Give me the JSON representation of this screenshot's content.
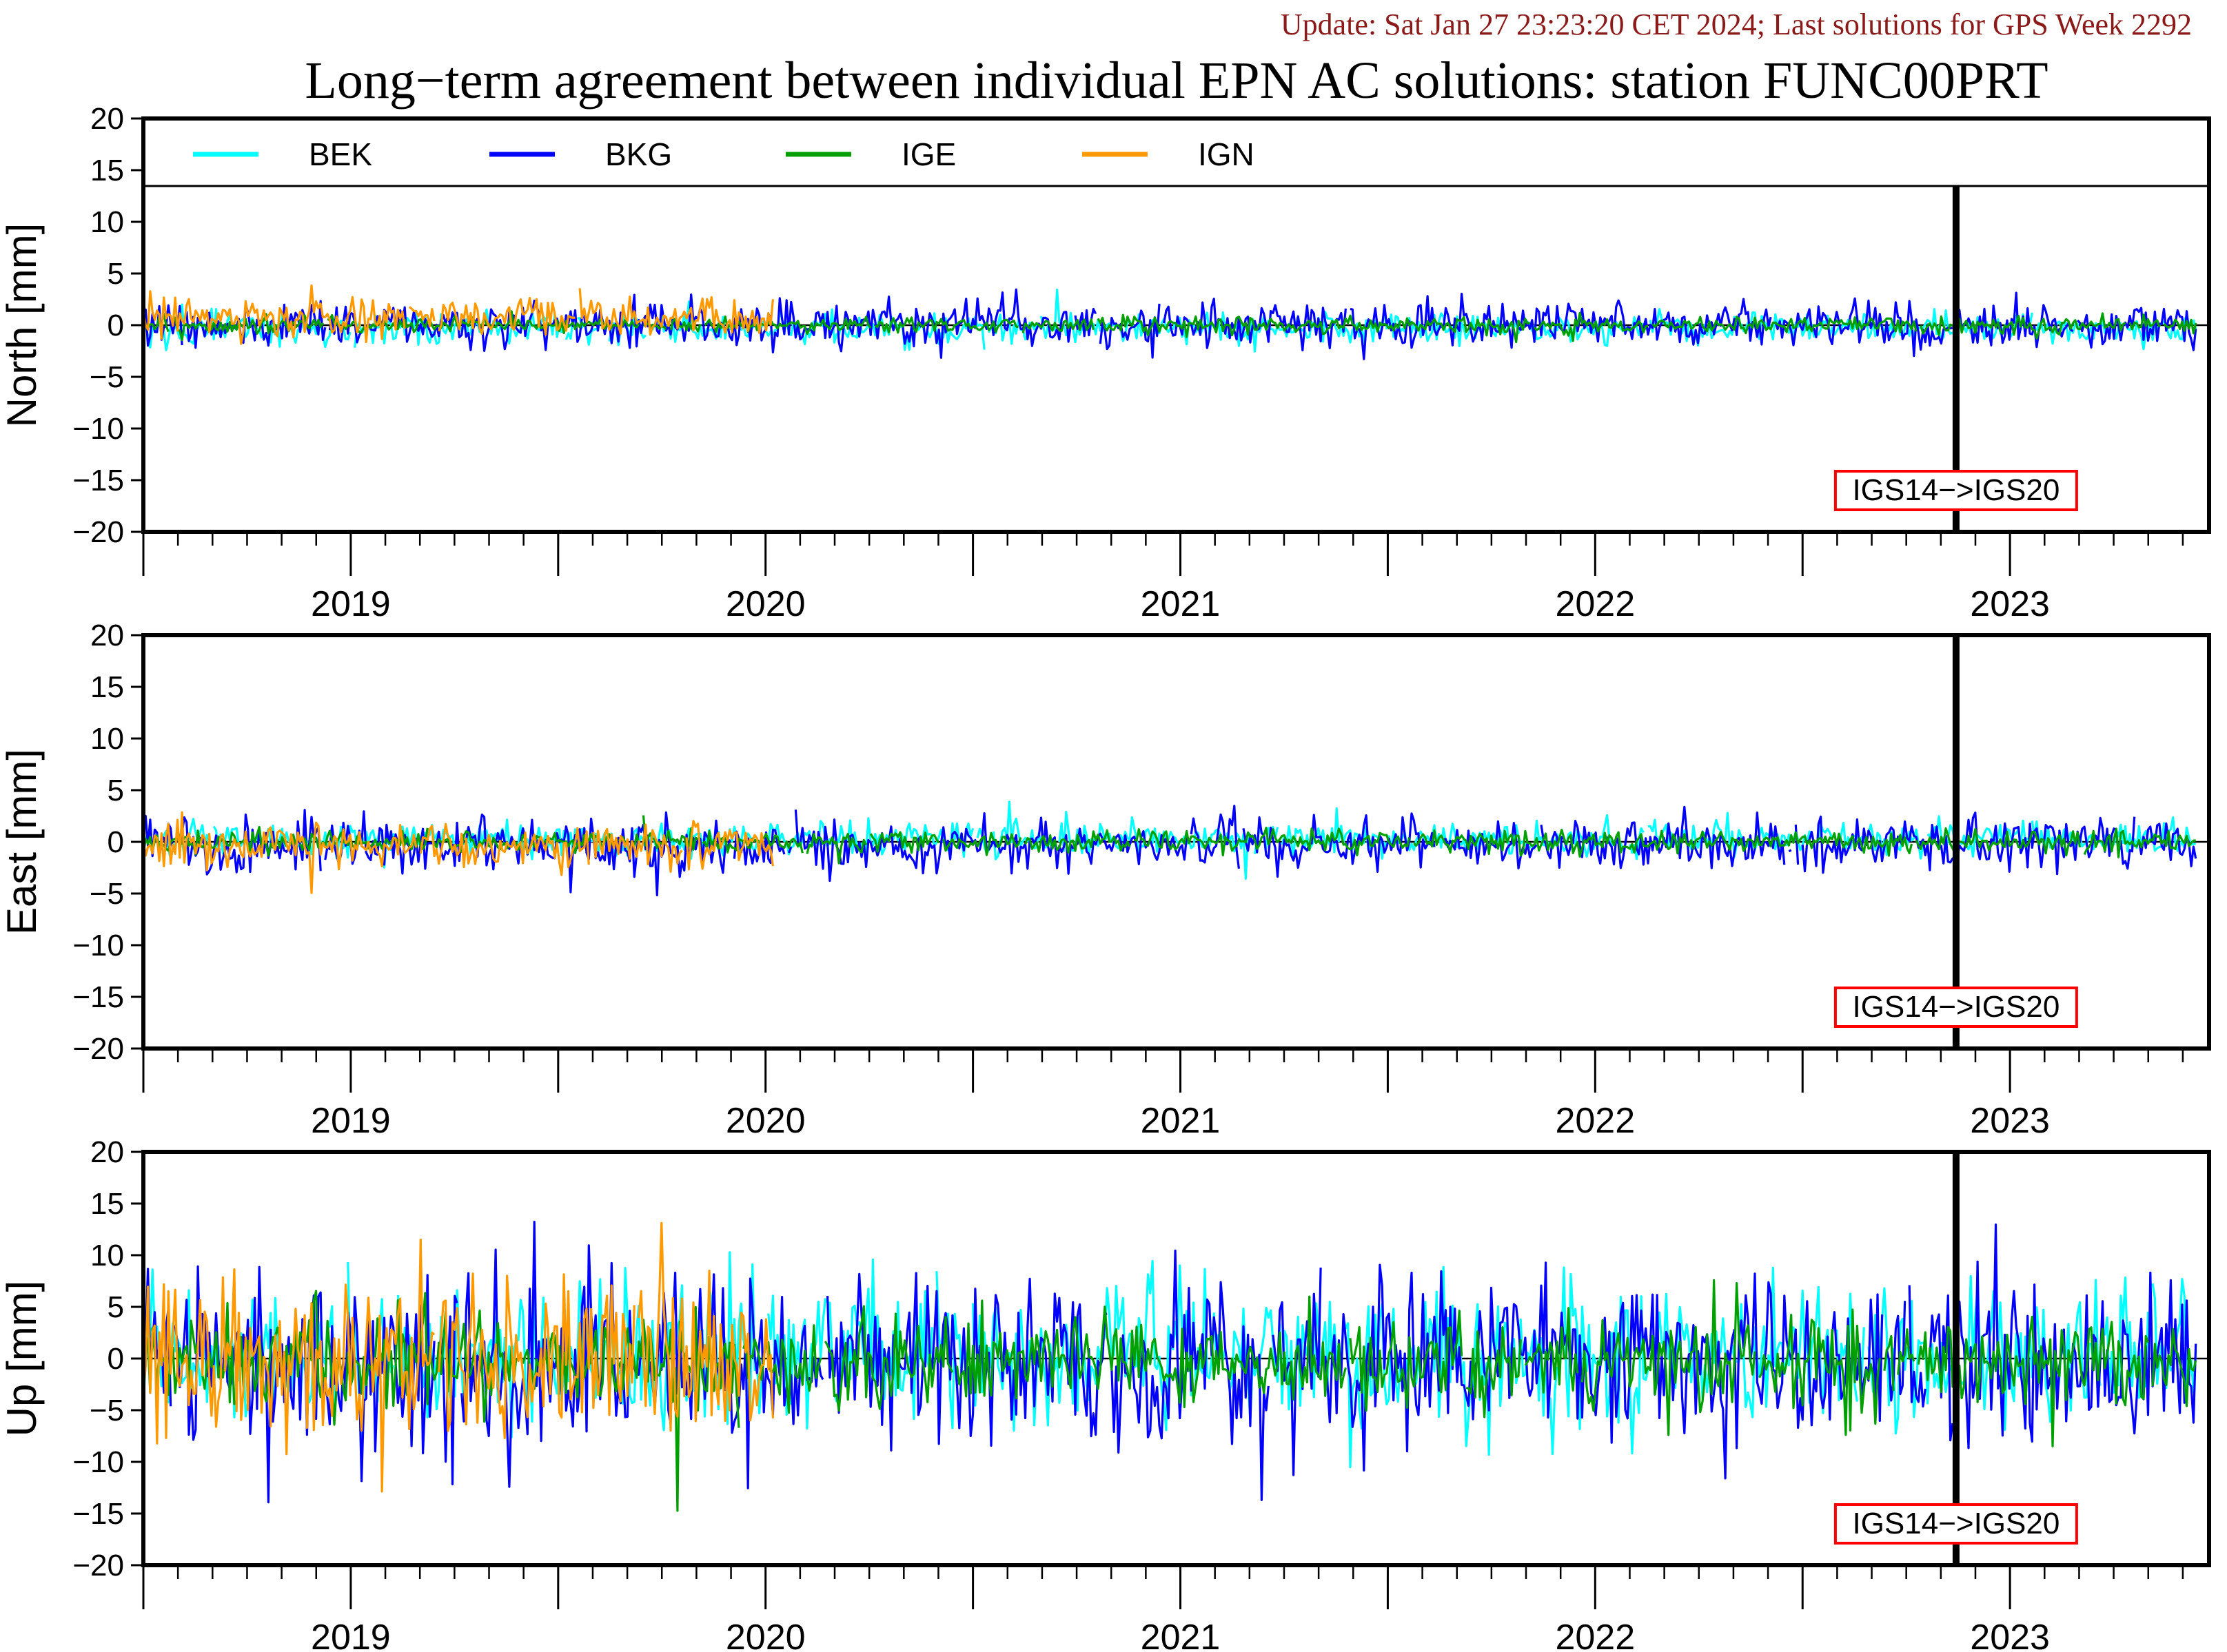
{
  "header": {
    "update": "Update: Sat Jan 27 23:23:20 CET 2024; Last solutions for GPS Week 2292",
    "title": "Long−term agreement between individual EPN AC solutions: station FUNC00PRT"
  },
  "colors": {
    "BEK": "#00ffff",
    "BKG": "#0000ff",
    "IGE": "#00a000",
    "IGN": "#ff9900",
    "annotation_border": "#ff0000",
    "update_text": "#8b1a1a"
  },
  "legend": [
    {
      "name": "BEK",
      "color": "#00ffff"
    },
    {
      "name": "BKG",
      "color": "#0000ff"
    },
    {
      "name": "IGE",
      "color": "#00a000"
    },
    {
      "name": "IGN",
      "color": "#ff9900"
    }
  ],
  "annotation": {
    "label": "IGS14−>IGS20",
    "date": 2022.87
  },
  "chart_data": [
    {
      "type": "line",
      "ylabel": "North [mm]",
      "ylim": [
        -20,
        20
      ],
      "yticks": [
        20,
        15,
        10,
        5,
        0,
        -5,
        -10,
        -15,
        -20
      ],
      "xlim": [
        2018.5,
        2023.48
      ],
      "year_labels": [
        "2019",
        "2020",
        "2021",
        "2022",
        "2023"
      ],
      "has_legend": true,
      "series": [
        {
          "name": "BEK",
          "start": 2018.5,
          "end": 2023.45,
          "amp": 0.7,
          "bias": -0.3
        },
        {
          "name": "BKG",
          "start": 2018.5,
          "end": 2023.45,
          "amp": 1.1,
          "bias": 0.0
        },
        {
          "name": "IGE",
          "start": 2018.5,
          "end": 2023.45,
          "amp": 0.4,
          "bias": 0.0
        },
        {
          "name": "IGN",
          "start": 2018.5,
          "end": 2020.02,
          "amp": 0.9,
          "bias": 0.8
        }
      ]
    },
    {
      "type": "line",
      "ylabel": "East [mm]",
      "ylim": [
        -20,
        20
      ],
      "yticks": [
        20,
        15,
        10,
        5,
        0,
        -5,
        -10,
        -15,
        -20
      ],
      "xlim": [
        2018.5,
        2023.48
      ],
      "year_labels": [
        "2019",
        "2020",
        "2021",
        "2022",
        "2023"
      ],
      "has_legend": false,
      "series": [
        {
          "name": "BEK",
          "start": 2018.5,
          "end": 2023.45,
          "amp": 0.8,
          "bias": 0.3
        },
        {
          "name": "BKG",
          "start": 2018.5,
          "end": 2023.45,
          "amp": 1.3,
          "bias": -0.2
        },
        {
          "name": "IGE",
          "start": 2018.5,
          "end": 2023.45,
          "amp": 0.5,
          "bias": 0.0
        },
        {
          "name": "IGN",
          "start": 2018.5,
          "end": 2020.02,
          "amp": 1.0,
          "bias": -0.3
        }
      ]
    },
    {
      "type": "line",
      "ylabel": "Up [mm]",
      "ylim": [
        -20,
        20
      ],
      "yticks": [
        20,
        15,
        10,
        5,
        0,
        -5,
        -10,
        -15,
        -20
      ],
      "xlim": [
        2018.5,
        2023.48
      ],
      "year_labels": [
        "2019",
        "2020",
        "2021",
        "2022",
        "2023"
      ],
      "has_legend": false,
      "series": [
        {
          "name": "BEK",
          "start": 2018.5,
          "end": 2023.45,
          "amp": 3.5,
          "bias": 0.0
        },
        {
          "name": "BKG",
          "start": 2018.5,
          "end": 2023.45,
          "amp": 4.0,
          "bias": -0.5
        },
        {
          "name": "IGE",
          "start": 2018.5,
          "end": 2023.45,
          "amp": 2.2,
          "bias": -0.3
        },
        {
          "name": "IGN",
          "start": 2018.5,
          "end": 2020.02,
          "amp": 4.0,
          "bias": 0.0
        }
      ]
    }
  ]
}
